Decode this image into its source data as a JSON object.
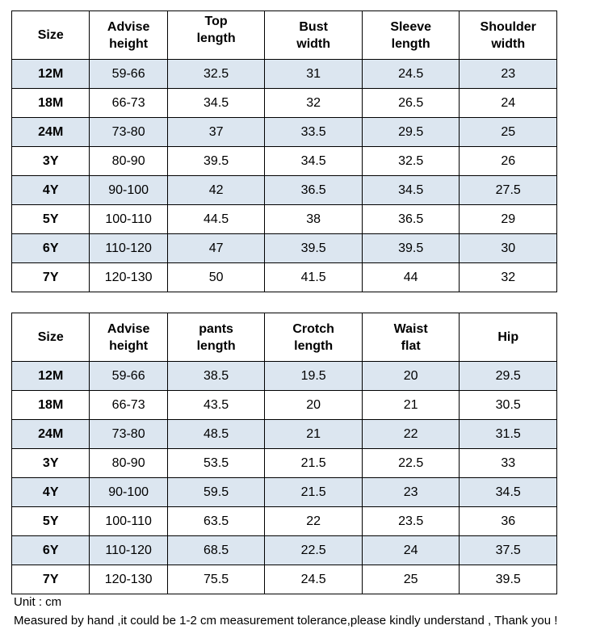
{
  "top_table": {
    "headers": [
      [
        "Size"
      ],
      [
        "Advise",
        "height"
      ],
      [
        "Top",
        "length"
      ],
      [
        "Bust",
        "width"
      ],
      [
        "Sleeve",
        "length"
      ],
      [
        "Shoulder",
        "width"
      ]
    ],
    "rows": [
      [
        "12M",
        "59-66",
        "32.5",
        "31",
        "24.5",
        "23"
      ],
      [
        "18M",
        "66-73",
        "34.5",
        "32",
        "26.5",
        "24"
      ],
      [
        "24M",
        "73-80",
        "37",
        "33.5",
        "29.5",
        "25"
      ],
      [
        "3Y",
        "80-90",
        "39.5",
        "34.5",
        "32.5",
        "26"
      ],
      [
        "4Y",
        "90-100",
        "42",
        "36.5",
        "34.5",
        "27.5"
      ],
      [
        "5Y",
        "100-110",
        "44.5",
        "38",
        "36.5",
        "29"
      ],
      [
        "6Y",
        "110-120",
        "47",
        "39.5",
        "39.5",
        "30"
      ],
      [
        "7Y",
        "120-130",
        "50",
        "41.5",
        "44",
        "32"
      ]
    ]
  },
  "bottom_table": {
    "headers": [
      [
        "Size"
      ],
      [
        "Advise",
        "height"
      ],
      [
        "pants",
        "length"
      ],
      [
        "Crotch",
        "length"
      ],
      [
        "Waist",
        "flat"
      ],
      [
        "Hip"
      ]
    ],
    "rows": [
      [
        "12M",
        "59-66",
        "38.5",
        "19.5",
        "20",
        "29.5"
      ],
      [
        "18M",
        "66-73",
        "43.5",
        "20",
        "21",
        "30.5"
      ],
      [
        "24M",
        "73-80",
        "48.5",
        "21",
        "22",
        "31.5"
      ],
      [
        "3Y",
        "80-90",
        "53.5",
        "21.5",
        "22.5",
        "33"
      ],
      [
        "4Y",
        "90-100",
        "59.5",
        "21.5",
        "23",
        "34.5"
      ],
      [
        "5Y",
        "100-110",
        "63.5",
        "22",
        "23.5",
        "36"
      ],
      [
        "6Y",
        "110-120",
        "68.5",
        "22.5",
        "24",
        "37.5"
      ],
      [
        "7Y",
        "120-130",
        "75.5",
        "24.5",
        "25",
        "39.5"
      ]
    ]
  },
  "shaded_row_color": "#dce6f0",
  "notes": {
    "unit": "Unit : cm",
    "tolerance": "Measured by hand ,it could be 1-2 cm measurement tolerance,please kindly understand , Thank you !"
  }
}
